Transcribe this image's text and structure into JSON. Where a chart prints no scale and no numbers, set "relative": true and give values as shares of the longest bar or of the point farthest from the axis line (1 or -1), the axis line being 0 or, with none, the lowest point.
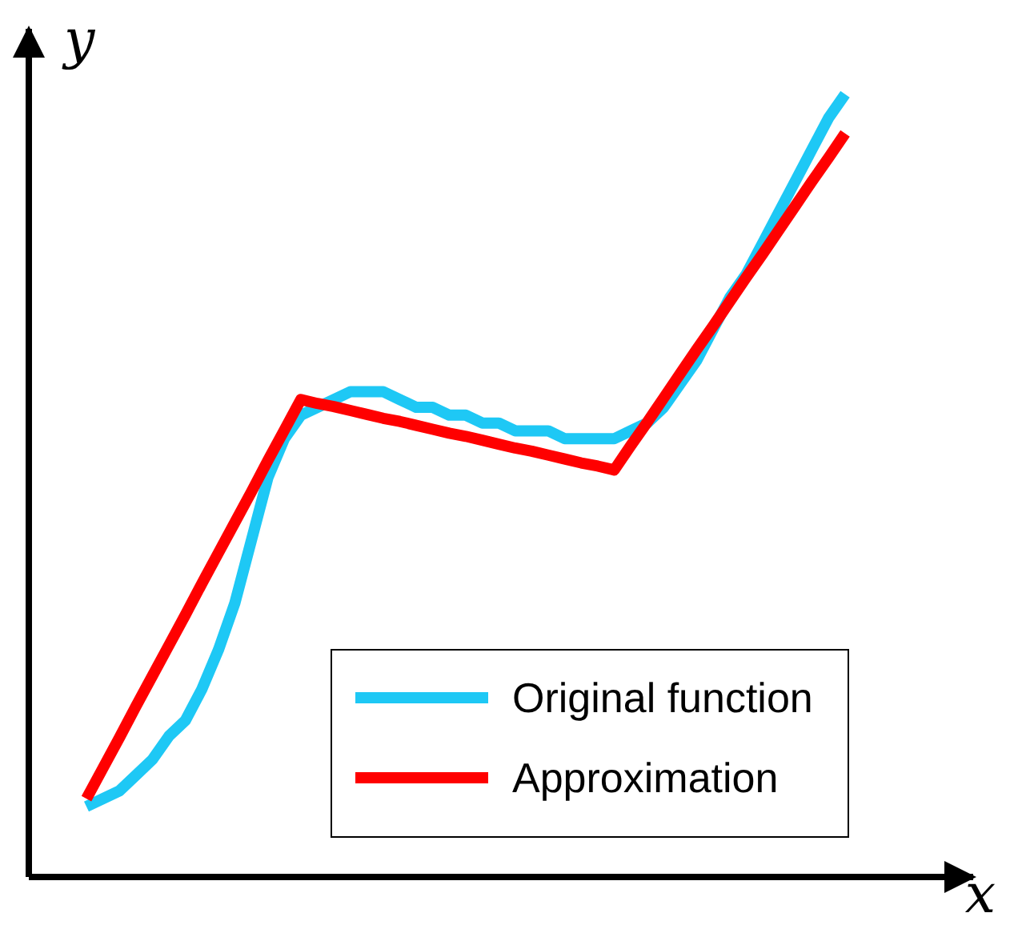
{
  "chart_data": {
    "type": "line",
    "relative": true,
    "xlabel": "x",
    "ylabel": "y",
    "legend": "bottom right",
    "line_style": "solid",
    "marker": "none",
    "categories": [
      null,
      null,
      null,
      null,
      null,
      null,
      null,
      null,
      null,
      null,
      null,
      null,
      null,
      null,
      null,
      null,
      null,
      null,
      null,
      null,
      null,
      null,
      null,
      null,
      null,
      null,
      null,
      null,
      null,
      null,
      null,
      null,
      null,
      null,
      null,
      null,
      null,
      null,
      null,
      null,
      null,
      null,
      null,
      null,
      null,
      null,
      null
    ],
    "series": [
      {
        "name": "Original function",
        "color": "#1ec8f5",
        "values": [
          0.09,
          0.1,
          0.11,
          0.13,
          0.15,
          0.18,
          0.2,
          0.24,
          0.29,
          0.35,
          0.43,
          0.51,
          0.56,
          0.59,
          0.6,
          0.61,
          0.62,
          0.62,
          0.62,
          0.61,
          0.6,
          0.6,
          0.59,
          0.59,
          0.58,
          0.58,
          0.57,
          0.57,
          0.57,
          0.56,
          0.56,
          0.56,
          0.56,
          0.57,
          0.58,
          0.6,
          0.63,
          0.66,
          0.7,
          0.74,
          0.77,
          0.81,
          0.85,
          0.89,
          0.93,
          0.97,
          1.0
        ]
      },
      {
        "name": "Approximation",
        "color": "#ff0000",
        "values": [
          0.1,
          0.139,
          0.178,
          0.218,
          0.257,
          0.296,
          0.335,
          0.375,
          0.414,
          0.453,
          0.492,
          0.532,
          0.571,
          0.61,
          0.605,
          0.601,
          0.596,
          0.591,
          0.586,
          0.582,
          0.577,
          0.572,
          0.567,
          0.563,
          0.558,
          0.553,
          0.548,
          0.544,
          0.539,
          0.534,
          0.529,
          0.525,
          0.52,
          0.551,
          0.581,
          0.612,
          0.643,
          0.674,
          0.704,
          0.735,
          0.766,
          0.796,
          0.827,
          0.858,
          0.889,
          0.919,
          0.95
        ]
      }
    ]
  }
}
